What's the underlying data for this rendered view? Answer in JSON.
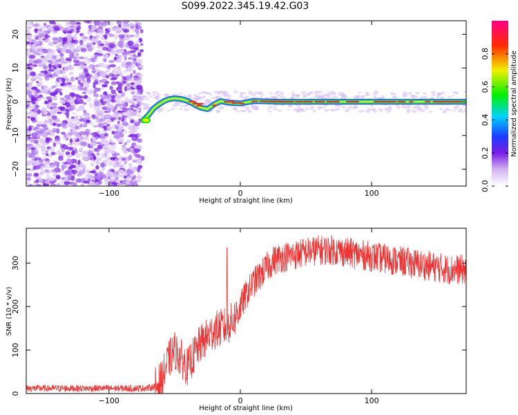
{
  "title": "S099.2022.345.19.42.G03",
  "colors": {
    "snr_line": "#ee3333",
    "noise_purple": "#7a1ee6",
    "axis": "#000000"
  },
  "chart_data": [
    {
      "type": "heatmap",
      "title": "S099.2022.345.19.42.G03",
      "xlabel": "Height of straight line (km)",
      "ylabel": "Frequency (Hz)",
      "xlim": [
        -163,
        172
      ],
      "ylim": [
        -25,
        24
      ],
      "xticks": [
        -100,
        0,
        100
      ],
      "yticks": [
        -20,
        -10,
        0,
        10,
        20
      ],
      "colorbar": {
        "label": "Normalized spectral amplitude",
        "range": [
          0.0,
          1.0
        ],
        "ticks": [
          "0.0",
          "0.2",
          "0.4",
          "0.6",
          "0.8"
        ],
        "tick_values": [
          0.0,
          0.2,
          0.4,
          0.6,
          0.8
        ],
        "colormap": "rainbow (white → purple → blue → cyan → green → yellow → red → magenta)"
      },
      "ridge": {
        "description": "dominant frequency ridge",
        "x": [
          -74,
          -70,
          -66,
          -62,
          -58,
          -54,
          -50,
          -45,
          -40,
          -35,
          -30,
          -25,
          -20,
          -15,
          -10,
          -5,
          0,
          10,
          30,
          60,
          100,
          140,
          172
        ],
        "y": [
          -5.5,
          -4,
          -2,
          -0.8,
          0.2,
          0.8,
          1.0,
          0.8,
          0.2,
          -0.8,
          -1.8,
          -2.2,
          -0.8,
          0.2,
          -0.2,
          -0.4,
          -0.5,
          0.2,
          0.0,
          0.0,
          0.0,
          0.0,
          0.0
        ],
        "peak_amplitude": 0.95
      },
      "noise_region": {
        "x_range": [
          -163,
          -75
        ],
        "amplitude_range": [
          0.0,
          0.2
        ]
      }
    },
    {
      "type": "line",
      "xlabel": "Height of straight line (km)",
      "ylabel": "SNR (10 * v/v)",
      "xlim": [
        -163,
        172
      ],
      "ylim": [
        0,
        380
      ],
      "xticks": [
        -100,
        0,
        100
      ],
      "yticks": [
        0,
        100,
        200,
        300
      ],
      "series": [
        {
          "x": [
            -163,
            -140,
            -120,
            -100,
            -80,
            -70,
            -65,
            -60,
            -55,
            -50,
            -45,
            -40,
            -35,
            -30,
            -25,
            -20,
            -15,
            -10,
            -5,
            0,
            5,
            10,
            15,
            20,
            25,
            30,
            40,
            50,
            60,
            70,
            80,
            90,
            100,
            110,
            120,
            130,
            140,
            150,
            160,
            172
          ],
          "y": [
            12,
            12,
            12,
            12,
            12,
            13,
            16,
            30,
            75,
            100,
            80,
            60,
            90,
            115,
            130,
            145,
            150,
            155,
            170,
            200,
            230,
            255,
            270,
            290,
            305,
            312,
            318,
            325,
            330,
            330,
            325,
            320,
            315,
            310,
            305,
            300,
            295,
            290,
            285,
            285
          ],
          "amplitude_range": [
            6,
            22
          ]
        }
      ]
    }
  ]
}
